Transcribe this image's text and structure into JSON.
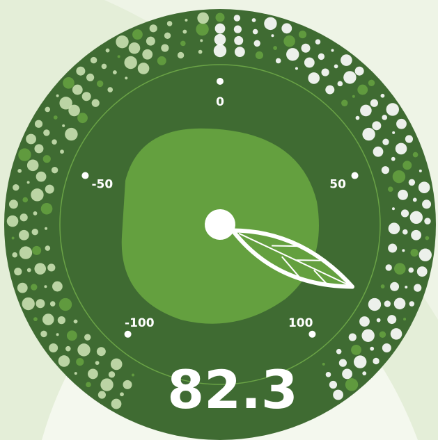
{
  "chart_data": {
    "type": "gauge",
    "value": 82.3,
    "ylim": [
      -100,
      100
    ],
    "yticks": [
      -100,
      -50,
      0,
      50,
      100
    ],
    "color": "#3f6b32"
  }
}
